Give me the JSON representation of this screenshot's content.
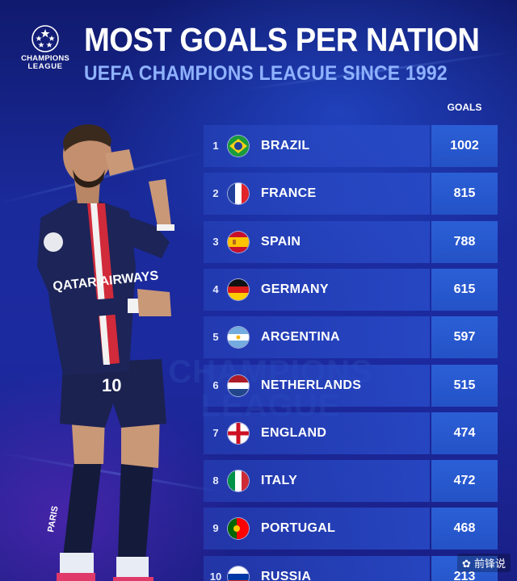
{
  "logo": {
    "line1": "CHAMPIONS",
    "line2": "LEAGUE",
    "icon": "ucl-starball-icon"
  },
  "title": "MOST GOALS PER NATION",
  "subtitle": "UEFA CHAMPIONS LEAGUE SINCE 1992",
  "column_header": "GOALS",
  "watermark": {
    "line1": "CHAMPIONS",
    "line2": "LEAGUE"
  },
  "rows": [
    {
      "rank": "1",
      "country": "BRAZIL",
      "goals": "1002",
      "flag": "brazil-flag-icon"
    },
    {
      "rank": "2",
      "country": "FRANCE",
      "goals": "815",
      "flag": "france-flag-icon"
    },
    {
      "rank": "3",
      "country": "SPAIN",
      "goals": "788",
      "flag": "spain-flag-icon"
    },
    {
      "rank": "4",
      "country": "GERMANY",
      "goals": "615",
      "flag": "germany-flag-icon"
    },
    {
      "rank": "5",
      "country": "ARGENTINA",
      "goals": "597",
      "flag": "argentina-flag-icon"
    },
    {
      "rank": "6",
      "country": "NETHERLANDS",
      "goals": "515",
      "flag": "netherlands-flag-icon"
    },
    {
      "rank": "7",
      "country": "ENGLAND",
      "goals": "474",
      "flag": "england-flag-icon"
    },
    {
      "rank": "8",
      "country": "ITALY",
      "goals": "472",
      "flag": "italy-flag-icon"
    },
    {
      "rank": "9",
      "country": "PORTUGAL",
      "goals": "468",
      "flag": "portugal-flag-icon"
    },
    {
      "rank": "10",
      "country": "RUSSIA",
      "goals": "213",
      "flag": "russia-flag-icon"
    }
  ],
  "player": {
    "shirt_sponsor": "QATAR AIRWAYS",
    "shirt_number": "10",
    "shorts_text": "PARIS"
  },
  "source": "前锋说",
  "colors": {
    "background": "#1a2a9a",
    "title": "#ffffff",
    "subtitle": "#8fb2ff",
    "goals_cell": "#2b5fd6"
  }
}
